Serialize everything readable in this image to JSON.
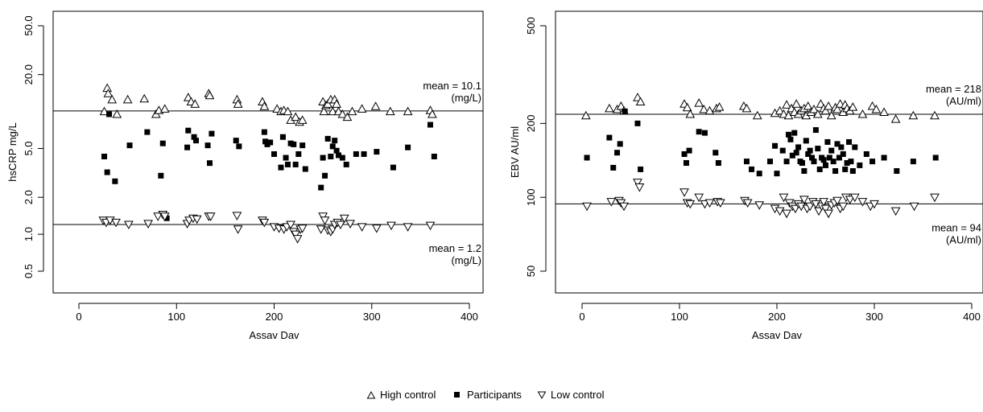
{
  "chart_data": [
    {
      "type": "scatter",
      "title": "",
      "xlabel": "Assav Dav",
      "ylabel": "hsCRP mg/L",
      "xlim": [
        0,
        400
      ],
      "ylim": [
        0.5,
        50
      ],
      "y_scale": "log",
      "x_ticks": [
        0,
        100,
        200,
        300,
        400
      ],
      "y_ticks": [
        0.5,
        1.0,
        2.0,
        5.0,
        20.0,
        50.0
      ],
      "y_tick_labels": [
        "0.5",
        "1.0",
        "2.0",
        "5.0",
        "20.0",
        "50.0"
      ],
      "reference_lines": [
        {
          "value": 10.1,
          "label_1": "mean = 10.1",
          "label_2": "(mg/L)",
          "position": "above-right"
        },
        {
          "value": 1.2,
          "label_1": "mean = 1.2",
          "label_2": "(mg/L)",
          "position": "below-right"
        }
      ],
      "series": [
        {
          "name": "High control",
          "marker": "triangle-up",
          "x": [
            26,
            29,
            30,
            34,
            39,
            50,
            67,
            79,
            82,
            88,
            112,
            115,
            119,
            133,
            134,
            162,
            163,
            188,
            190,
            203,
            207,
            210,
            214,
            217,
            222,
            226,
            229,
            250,
            251,
            253,
            255,
            258,
            260,
            262,
            264,
            266,
            270,
            275,
            280,
            290,
            304,
            319,
            337,
            360,
            362
          ],
          "y": [
            10,
            15.5,
            14,
            12.5,
            9.5,
            12.5,
            12.7,
            9.5,
            10.2,
            10.5,
            13,
            12,
            11.5,
            14,
            13.5,
            12.5,
            11.5,
            12,
            11,
            10.5,
            10,
            10.2,
            10,
            8.5,
            9,
            8.2,
            8.5,
            12,
            10,
            11.2,
            11.5,
            12.5,
            10,
            12.5,
            11.5,
            10,
            9.5,
            9,
            10,
            10.5,
            11,
            10,
            10,
            10.2,
            9.5
          ]
        },
        {
          "name": "Participants",
          "marker": "square-filled",
          "x": [
            26,
            29,
            31,
            37,
            52,
            70,
            84,
            86,
            90,
            111,
            112,
            118,
            120,
            132,
            134,
            136,
            161,
            164,
            190,
            191,
            193,
            196,
            200,
            207,
            209,
            212,
            214,
            217,
            220,
            222,
            225,
            229,
            232,
            248,
            250,
            252,
            255,
            258,
            260,
            262,
            264,
            266,
            270,
            274,
            284,
            292,
            305,
            322,
            337,
            360,
            364
          ],
          "y": [
            4.3,
            3.2,
            9.5,
            2.7,
            5.3,
            6.8,
            3,
            5.5,
            1.35,
            5.1,
            7,
            6.2,
            5.8,
            5.3,
            3.8,
            6.6,
            5.8,
            5.2,
            6.8,
            5.7,
            5.4,
            5.6,
            4.5,
            3.5,
            6.2,
            4.2,
            3.7,
            5.5,
            5.4,
            3.7,
            4.5,
            5.3,
            3.4,
            2.4,
            4.2,
            3,
            6,
            4.3,
            5.2,
            5.8,
            4.8,
            4.4,
            4.2,
            3.7,
            4.5,
            4.5,
            4.7,
            3.5,
            5.1,
            7.8,
            4.3
          ]
        },
        {
          "name": "Low control",
          "marker": "triangle-down",
          "x": [
            25,
            28,
            32,
            38,
            51,
            71,
            81,
            86,
            88,
            111,
            113,
            117,
            121,
            133,
            135,
            162,
            163,
            188,
            190,
            200,
            205,
            210,
            213,
            217,
            220,
            222,
            224,
            227,
            229,
            248,
            250,
            252,
            255,
            258,
            260,
            262,
            265,
            268,
            272,
            278,
            290,
            305,
            320,
            337,
            360
          ],
          "y": [
            1.3,
            1.25,
            1.3,
            1.25,
            1.2,
            1.22,
            1.4,
            1.45,
            1.4,
            1.22,
            1.3,
            1.35,
            1.33,
            1.4,
            1.4,
            1.42,
            1.1,
            1.3,
            1.25,
            1.15,
            1.12,
            1.1,
            1.15,
            1.2,
            1.05,
            1.0,
            0.92,
            1.1,
            1.12,
            1.1,
            1.4,
            1.3,
            1.08,
            1.05,
            1.1,
            1.2,
            1.25,
            1.2,
            1.35,
            1.22,
            1.15,
            1.12,
            1.18,
            1.15,
            1.18
          ]
        }
      ]
    },
    {
      "type": "scatter",
      "title": "",
      "xlabel": "Assav Dav",
      "ylabel": "EBV AU/ml",
      "xlim": [
        0,
        400
      ],
      "ylim": [
        50,
        500
      ],
      "y_scale": "log",
      "x_ticks": [
        0,
        100,
        200,
        300,
        400
      ],
      "y_ticks": [
        50,
        100,
        200,
        500
      ],
      "y_tick_labels": [
        "50",
        "100",
        "200",
        "500"
      ],
      "reference_lines": [
        {
          "value": 218,
          "label_1": "mean = 218",
          "label_2": "(AU/ml)",
          "position": "above-right"
        },
        {
          "value": 94,
          "label_1": "mean = 94",
          "label_2": "(AU/ml)",
          "position": "below-right"
        }
      ],
      "series": [
        {
          "name": "High control",
          "marker": "triangle-up",
          "x": [
            4,
            28,
            36,
            40,
            43,
            57,
            60,
            105,
            108,
            111,
            120,
            125,
            131,
            138,
            141,
            166,
            169,
            180,
            198,
            203,
            207,
            210,
            212,
            215,
            218,
            220,
            222,
            225,
            228,
            230,
            232,
            235,
            238,
            242,
            245,
            248,
            250,
            253,
            256,
            260,
            262,
            265,
            268,
            270,
            272,
            275,
            278,
            288,
            298,
            302,
            310,
            322,
            340,
            362
          ],
          "y": [
            215,
            230,
            228,
            235,
            225,
            255,
            245,
            240,
            232,
            218,
            242,
            228,
            225,
            230,
            233,
            235,
            230,
            215,
            220,
            225,
            218,
            238,
            215,
            230,
            222,
            240,
            218,
            225,
            230,
            215,
            235,
            222,
            228,
            218,
            240,
            230,
            225,
            235,
            215,
            232,
            228,
            240,
            222,
            238,
            230,
            225,
            233,
            218,
            235,
            228,
            222,
            208,
            215,
            215
          ]
        },
        {
          "name": "Participants",
          "marker": "square-filled",
          "x": [
            5,
            28,
            32,
            36,
            39,
            44,
            57,
            60,
            105,
            107,
            110,
            120,
            126,
            137,
            140,
            169,
            174,
            182,
            193,
            198,
            200,
            206,
            210,
            212,
            214,
            216,
            218,
            220,
            222,
            224,
            226,
            228,
            230,
            232,
            234,
            236,
            238,
            240,
            242,
            244,
            246,
            248,
            250,
            252,
            254,
            256,
            258,
            260,
            262,
            264,
            266,
            268,
            270,
            272,
            274,
            276,
            278,
            280,
            285,
            292,
            298,
            310,
            323,
            340,
            363
          ],
          "y": [
            145,
            175,
            132,
            152,
            165,
            224,
            200,
            130,
            150,
            138,
            155,
            185,
            183,
            152,
            138,
            140,
            130,
            125,
            140,
            162,
            125,
            155,
            140,
            180,
            172,
            148,
            183,
            152,
            160,
            140,
            138,
            128,
            170,
            150,
            155,
            145,
            140,
            188,
            158,
            130,
            145,
            142,
            135,
            168,
            145,
            155,
            140,
            128,
            165,
            145,
            160,
            150,
            130,
            138,
            168,
            140,
            128,
            160,
            135,
            150,
            140,
            145,
            128,
            140,
            145
          ]
        },
        {
          "name": "Low control",
          "marker": "triangle-down",
          "x": [
            5,
            30,
            38,
            40,
            43,
            57,
            59,
            105,
            108,
            111,
            120,
            126,
            131,
            139,
            142,
            167,
            170,
            182,
            198,
            203,
            207,
            210,
            213,
            216,
            219,
            222,
            225,
            228,
            231,
            234,
            237,
            240,
            243,
            246,
            248,
            250,
            253,
            256,
            259,
            262,
            265,
            268,
            271,
            275,
            280,
            288,
            296,
            300,
            322,
            341,
            362
          ],
          "y": [
            92,
            96,
            97,
            95,
            92,
            115,
            110,
            105,
            95,
            94,
            100,
            94,
            95,
            96,
            95,
            97,
            95,
            93,
            90,
            88,
            100,
            86,
            95,
            92,
            90,
            94,
            92,
            98,
            90,
            92,
            96,
            94,
            88,
            92,
            96,
            90,
            86,
            93,
            95,
            97,
            90,
            92,
            100,
            98,
            100,
            96,
            92,
            94,
            88,
            92,
            100
          ]
        }
      ]
    }
  ],
  "legend": {
    "position": "bottom-center",
    "items": [
      {
        "label": "High control",
        "marker": "triangle-up"
      },
      {
        "label": "Participants",
        "marker": "square-filled"
      },
      {
        "label": "Low control",
        "marker": "triangle-down"
      }
    ]
  }
}
